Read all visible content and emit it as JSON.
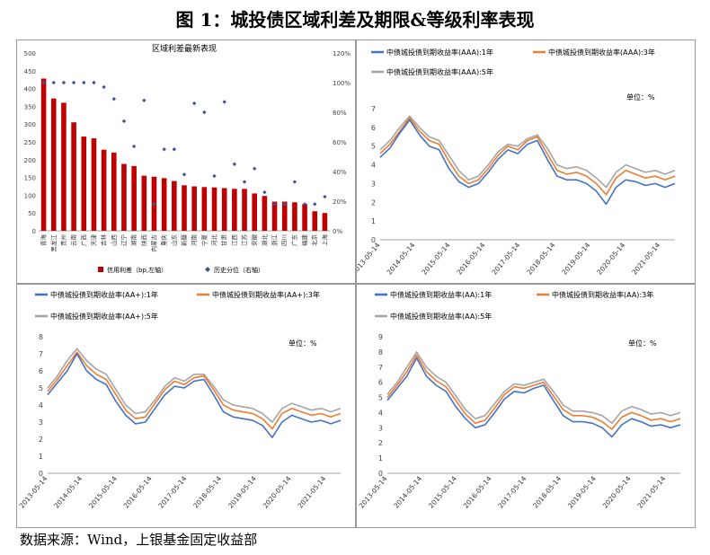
{
  "figure_title": "图 1：城投债区域利差及期限&等级利率表现",
  "source": "数据来源：Wind，上银基金固定收益部",
  "chart_data": [
    {
      "type": "bar",
      "title": "区域利差最新表现",
      "categories": [
        "青海",
        "黑龙江",
        "贵州",
        "云南",
        "广西",
        "天津",
        "吉林",
        "山西",
        "辽宁",
        "湖南",
        "陕西",
        "内蒙古",
        "重庆",
        "山东",
        "新疆",
        "河南",
        "宁夏",
        "河北",
        "甘肃",
        "江西",
        "江苏",
        "安徽",
        "湖北",
        "浙江",
        "四川",
        "广东",
        "福建",
        "北京",
        "上海"
      ],
      "series": [
        {
          "name": "信用利差（bp,左轴）",
          "type": "bar",
          "axis": "left",
          "values": [
            428,
            372,
            360,
            305,
            265,
            260,
            228,
            220,
            188,
            182,
            155,
            152,
            148,
            140,
            128,
            125,
            123,
            122,
            120,
            118,
            118,
            105,
            98,
            82,
            82,
            80,
            75,
            55,
            50
          ]
        },
        {
          "name": "历史分位（右轴）",
          "type": "scatter",
          "axis": "right",
          "values": [
            1.0,
            1.0,
            1.0,
            1.0,
            1.0,
            1.0,
            0.97,
            0.89,
            0.74,
            0.57,
            0.88,
            0.18,
            0.55,
            0.55,
            0.38,
            0.86,
            0.8,
            0.37,
            0.87,
            0.45,
            0.33,
            0.42,
            0.26,
            0.18,
            0.18,
            0.33,
            0.18,
            0.18,
            0.23
          ]
        }
      ],
      "ylim_left": [
        0,
        500
      ],
      "ylim_right": [
        0,
        1.2
      ],
      "yticks_left": [
        "0",
        "50",
        "100",
        "150",
        "200",
        "250",
        "300",
        "350",
        "400",
        "450",
        "500"
      ],
      "yticks_right": [
        "0%",
        "20%",
        "40%",
        "60%",
        "80%",
        "100%",
        "120%"
      ],
      "legend_position": "bottom",
      "colors": {
        "bar": "#c00000",
        "dot": "#44519a"
      }
    },
    {
      "type": "line",
      "x_start": "2013-05-14",
      "x_end": "2021-10-14",
      "xticks": [
        "2013-05-14",
        "2014-05-14",
        "2015-05-14",
        "2016-05-14",
        "2017-05-14",
        "2018-05-14",
        "2019-05-14",
        "2020-05-14",
        "2021-05-14"
      ],
      "ylim": [
        0,
        7
      ],
      "yticks": [
        "0",
        "1",
        "2",
        "3",
        "4",
        "5",
        "6",
        "7"
      ],
      "annotation": "单位：%",
      "legend_position": "top",
      "series": [
        {
          "name": "中债城投债到期收益率(AAA):1年",
          "color": "#4472c4",
          "values": [
            4.4,
            4.9,
            5.7,
            6.4,
            5.6,
            5.0,
            4.8,
            3.8,
            3.1,
            2.8,
            3.0,
            3.6,
            4.3,
            4.8,
            4.6,
            5.1,
            5.3,
            4.3,
            3.4,
            3.2,
            3.2,
            3.0,
            2.6,
            1.9,
            2.8,
            3.2,
            3.1,
            2.9,
            3.0,
            2.8,
            3.0
          ]
        },
        {
          "name": "中债城投债到期收益率(AAA):3年",
          "color": "#ed7d31",
          "values": [
            4.6,
            5.1,
            5.8,
            6.5,
            5.8,
            5.3,
            5.1,
            4.2,
            3.4,
            3.0,
            3.2,
            3.8,
            4.5,
            5.0,
            4.8,
            5.3,
            5.5,
            4.6,
            3.7,
            3.5,
            3.6,
            3.4,
            3.0,
            2.4,
            3.3,
            3.7,
            3.5,
            3.3,
            3.4,
            3.2,
            3.4
          ]
        },
        {
          "name": "中债城投债到期收益率(AAA):5年",
          "color": "#a5a5a5",
          "values": [
            4.8,
            5.3,
            6.0,
            6.6,
            6.0,
            5.5,
            5.3,
            4.5,
            3.7,
            3.2,
            3.4,
            4.0,
            4.7,
            5.1,
            5.0,
            5.4,
            5.6,
            4.9,
            4.0,
            3.8,
            3.9,
            3.7,
            3.3,
            2.8,
            3.6,
            4.0,
            3.8,
            3.6,
            3.7,
            3.5,
            3.7
          ]
        }
      ]
    },
    {
      "type": "line",
      "x_start": "2013-05-14",
      "x_end": "2021-10-14",
      "xticks": [
        "2013-05-14",
        "2014-05-14",
        "2015-05-14",
        "2016-05-14",
        "2017-05-14",
        "2018-05-14",
        "2019-05-14",
        "2020-05-14",
        "2021-05-14"
      ],
      "ylim": [
        0,
        8
      ],
      "yticks": [
        "0",
        "1",
        "2",
        "3",
        "4",
        "5",
        "6",
        "7",
        "8"
      ],
      "annotation": "单位：%",
      "legend_position": "top",
      "series": [
        {
          "name": "中债城投债到期收益率(AA+):1年",
          "color": "#4472c4",
          "values": [
            4.6,
            5.3,
            6.0,
            7.0,
            6.0,
            5.5,
            5.2,
            4.2,
            3.4,
            2.9,
            3.0,
            3.8,
            4.6,
            5.1,
            5.0,
            5.4,
            5.5,
            4.6,
            3.6,
            3.3,
            3.2,
            3.1,
            2.8,
            2.1,
            3.0,
            3.4,
            3.2,
            3.0,
            3.1,
            2.9,
            3.1
          ]
        },
        {
          "name": "中债城投债到期收益率(AA+):3年",
          "color": "#ed7d31",
          "values": [
            4.8,
            5.5,
            6.3,
            7.1,
            6.3,
            5.8,
            5.5,
            4.6,
            3.7,
            3.2,
            3.3,
            4.1,
            4.9,
            5.4,
            5.2,
            5.6,
            5.7,
            4.9,
            4.0,
            3.7,
            3.6,
            3.5,
            3.2,
            2.6,
            3.5,
            3.8,
            3.6,
            3.4,
            3.5,
            3.3,
            3.5
          ]
        },
        {
          "name": "中债城投债到期收益率(AA+):5年",
          "color": "#a5a5a5",
          "values": [
            5.0,
            5.7,
            6.6,
            7.3,
            6.6,
            6.1,
            5.8,
            4.9,
            4.0,
            3.5,
            3.6,
            4.3,
            5.1,
            5.6,
            5.4,
            5.8,
            5.8,
            5.1,
            4.3,
            4.0,
            3.9,
            3.8,
            3.5,
            3.0,
            3.8,
            4.1,
            3.9,
            3.7,
            3.8,
            3.6,
            3.8
          ]
        }
      ]
    },
    {
      "type": "line",
      "x_start": "2013-05-14",
      "x_end": "2021-10-14",
      "xticks": [
        "2013-05-14",
        "2014-05-14",
        "2015-05-14",
        "2016-05-14",
        "2017-05-14",
        "2018-05-14",
        "2019-05-14",
        "2020-05-14",
        "2021-05-14"
      ],
      "ylim": [
        0,
        9
      ],
      "yticks": [
        "0",
        "1",
        "2",
        "3",
        "4",
        "5",
        "6",
        "7",
        "8",
        "9"
      ],
      "annotation": "单位：%",
      "legend_position": "top",
      "series": [
        {
          "name": "中债城投债到期收益率(AA):1年",
          "color": "#4472c4",
          "values": [
            4.8,
            5.6,
            6.4,
            7.6,
            6.4,
            5.8,
            5.4,
            4.4,
            3.6,
            3.0,
            3.2,
            4.0,
            4.9,
            5.4,
            5.3,
            5.6,
            5.8,
            4.8,
            3.8,
            3.4,
            3.4,
            3.3,
            3.0,
            2.4,
            3.2,
            3.6,
            3.4,
            3.1,
            3.2,
            3.0,
            3.2
          ]
        },
        {
          "name": "中债城投债到期收益率(AA):3年",
          "color": "#ed7d31",
          "values": [
            5.0,
            5.8,
            6.7,
            7.8,
            6.7,
            6.1,
            5.7,
            4.8,
            3.9,
            3.3,
            3.5,
            4.3,
            5.2,
            5.7,
            5.6,
            5.8,
            6.0,
            5.1,
            4.2,
            3.8,
            3.8,
            3.7,
            3.4,
            2.9,
            3.7,
            4.0,
            3.8,
            3.5,
            3.6,
            3.4,
            3.6
          ]
        },
        {
          "name": "中债城投债到期收益率(AA):5年",
          "color": "#a5a5a5",
          "values": [
            5.2,
            6.0,
            7.0,
            8.0,
            7.0,
            6.4,
            6.0,
            5.1,
            4.2,
            3.6,
            3.8,
            4.6,
            5.4,
            5.9,
            5.8,
            6.0,
            6.2,
            5.4,
            4.5,
            4.1,
            4.1,
            4.0,
            3.8,
            3.3,
            4.1,
            4.4,
            4.2,
            3.9,
            4.0,
            3.8,
            4.0
          ]
        }
      ]
    }
  ]
}
